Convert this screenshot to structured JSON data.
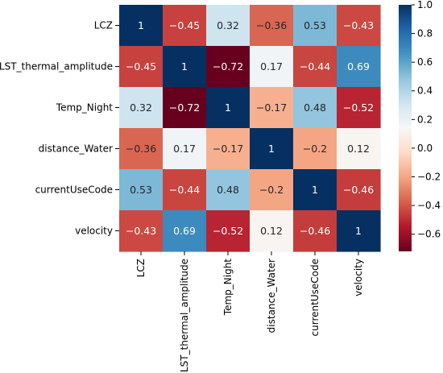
{
  "chart_data": {
    "type": "heatmap",
    "title": "",
    "xlabel": "",
    "ylabel": "",
    "row_labels": [
      "LCZ",
      "LST_thermal_amplitude",
      "Temp_Night",
      "distance_Water",
      "currentUseCode",
      "velocity"
    ],
    "col_labels": [
      "LCZ",
      "LST_thermal_amplitude",
      "Temp_Night",
      "distance_Water",
      "currentUseCode",
      "velocity"
    ],
    "values": [
      [
        1,
        -0.45,
        0.32,
        -0.36,
        0.53,
        -0.43
      ],
      [
        -0.45,
        1,
        -0.72,
        0.17,
        -0.44,
        0.69
      ],
      [
        0.32,
        -0.72,
        1,
        -0.17,
        0.48,
        -0.52
      ],
      [
        -0.36,
        0.17,
        -0.17,
        1,
        -0.2,
        0.12
      ],
      [
        0.53,
        -0.44,
        0.48,
        -0.2,
        1,
        -0.46
      ],
      [
        -0.43,
        0.69,
        -0.52,
        0.12,
        -0.46,
        1
      ]
    ],
    "cell_labels": [
      [
        "1",
        "−0.45",
        "0.32",
        "−0.36",
        "0.53",
        "−0.43"
      ],
      [
        "−0.45",
        "1",
        "−0.72",
        "0.17",
        "−0.44",
        "0.69"
      ],
      [
        "0.32",
        "−0.72",
        "1",
        "−0.17",
        "0.48",
        "−0.52"
      ],
      [
        "−0.36",
        "0.17",
        "−0.17",
        "1",
        "−0.2",
        "0.12"
      ],
      [
        "0.53",
        "−0.44",
        "0.48",
        "−0.2",
        "1",
        "−0.46"
      ],
      [
        "−0.43",
        "0.69",
        "−0.52",
        "0.12",
        "−0.46",
        "1"
      ]
    ],
    "colormap": "RdBu",
    "color_range": [
      -0.72,
      1.0
    ],
    "colorbar": {
      "ticks": [
        1.0,
        0.8,
        0.6,
        0.4,
        0.2,
        0.0,
        -0.2,
        -0.4,
        -0.6
      ],
      "tick_labels": [
        "1.0",
        "0.8",
        "0.6",
        "0.4",
        "0.2",
        "0.0",
        "−0.2",
        "−0.4",
        "−0.6"
      ],
      "position": "right"
    },
    "grid": false
  }
}
